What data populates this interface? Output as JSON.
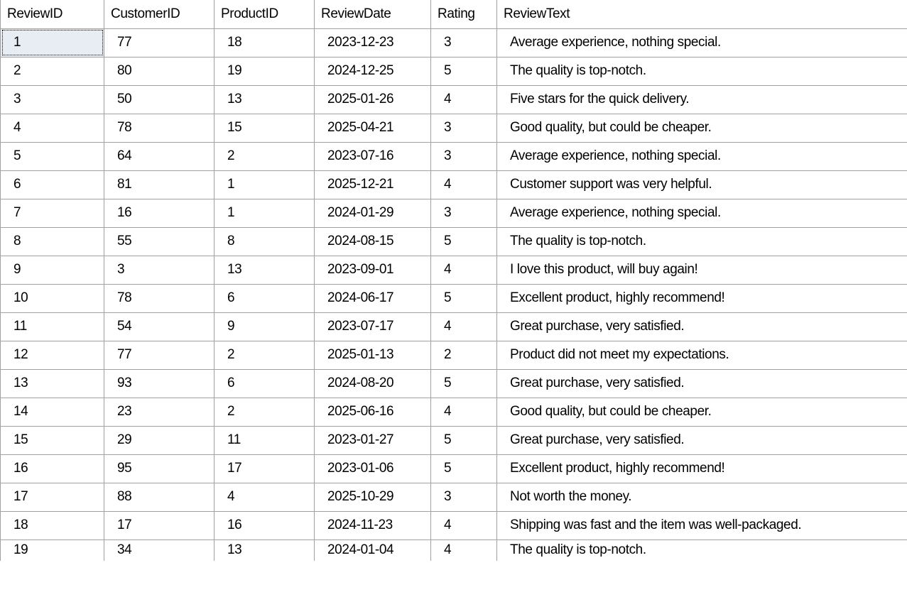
{
  "grid": {
    "columns": [
      "ReviewID",
      "CustomerID",
      "ProductID",
      "ReviewDate",
      "Rating",
      "ReviewText"
    ],
    "rows": [
      [
        "1",
        "77",
        "18",
        "2023-12-23",
        "3",
        "Average experience, nothing special."
      ],
      [
        "2",
        "80",
        "19",
        "2024-12-25",
        "5",
        "The quality is  top-notch."
      ],
      [
        "3",
        "50",
        "13",
        "2025-01-26",
        "4",
        "Five stars for the quick delivery."
      ],
      [
        "4",
        "78",
        "15",
        "2025-04-21",
        "3",
        "Good quality, but could be cheaper."
      ],
      [
        "5",
        "64",
        "2",
        "2023-07-16",
        "3",
        "Average experience, nothing special."
      ],
      [
        "6",
        "81",
        "1",
        "2025-12-21",
        "4",
        "Customer support was very helpful."
      ],
      [
        "7",
        "16",
        "1",
        "2024-01-29",
        "3",
        "Average experience, nothing special."
      ],
      [
        "8",
        "55",
        "8",
        "2024-08-15",
        "5",
        "The quality  is top-notch."
      ],
      [
        "9",
        "3",
        "13",
        "2023-09-01",
        "4",
        "I love this product, will buy again!"
      ],
      [
        "10",
        "78",
        "6",
        "2024-06-17",
        "5",
        "Excellent product, highly recommend!"
      ],
      [
        "11",
        "54",
        "9",
        "2023-07-17",
        "4",
        "Great purchase, very satisfied."
      ],
      [
        "12",
        "77",
        "2",
        "2025-01-13",
        "2",
        "Product did  not meet my expectations."
      ],
      [
        "13",
        "93",
        "6",
        "2024-08-20",
        "5",
        "Great purchase, very satisfied."
      ],
      [
        "14",
        "23",
        "2",
        "2025-06-16",
        "4",
        "Good quality, but could be cheaper."
      ],
      [
        "15",
        "29",
        "11",
        "2023-01-27",
        "5",
        "Great purchase, very satisfied."
      ],
      [
        "16",
        "95",
        "17",
        "2023-01-06",
        "5",
        "Excellent product, highly recommend!"
      ],
      [
        "17",
        "88",
        "4",
        "2025-10-29",
        "3",
        "Not worth the money."
      ],
      [
        "18",
        "17",
        "16",
        "2024-11-23",
        "4",
        "Shipping was fast and the item was well-packaged."
      ],
      [
        "19",
        "34",
        "13",
        "2024-01-04",
        "4",
        "The quality is top-notch."
      ]
    ]
  }
}
